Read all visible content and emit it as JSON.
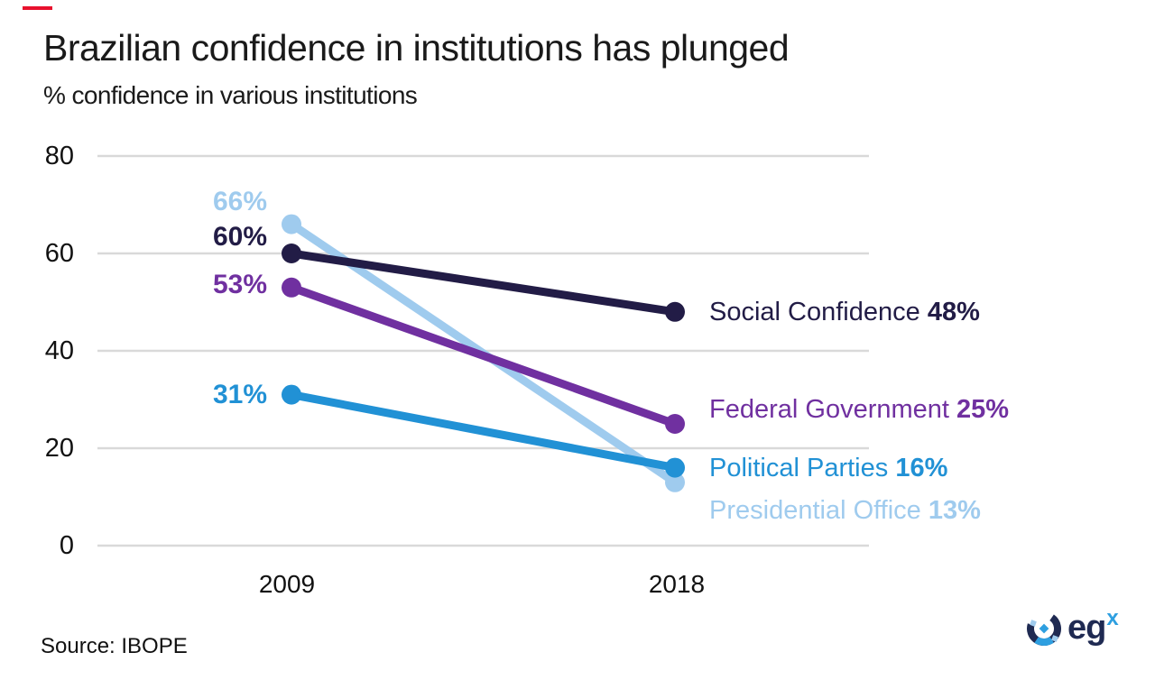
{
  "header": {
    "accent_color": "#E8112D",
    "title": "Brazilian confidence in institutions has plunged",
    "subtitle": "% confidence in various institutions"
  },
  "chart_data": {
    "type": "line",
    "x": [
      2009,
      2018
    ],
    "x_tick_labels": [
      "2009",
      "2018"
    ],
    "yticks": [
      0,
      20,
      40,
      60,
      80
    ],
    "ylim": [
      0,
      80
    ],
    "grid": "horizontal",
    "gridline_color": "#D9D9D9",
    "legend_position": "end-of-line labels",
    "series": [
      {
        "name": "Presidential Office",
        "color": "#9FCBEE",
        "values": [
          66,
          13
        ],
        "start_value_label": "66%",
        "end_value_label": "13%"
      },
      {
        "name": "Political Parties",
        "color": "#2191D5",
        "values": [
          31,
          16
        ],
        "start_value_label": "31%",
        "end_value_label": "16%"
      },
      {
        "name": "Federal Government",
        "color": "#7030A0",
        "values": [
          53,
          25
        ],
        "start_value_label": "53%",
        "end_value_label": "25%"
      },
      {
        "name": "Social Confidence",
        "color": "#221C46",
        "values": [
          60,
          48
        ],
        "start_value_label": "60%",
        "end_value_label": "48%"
      }
    ]
  },
  "source": {
    "label": "Source: IBOPE"
  },
  "logo": {
    "text": "eg",
    "sup": "x",
    "navy": "#1F2A52",
    "blue": "#2E9FE0",
    "light_blue": "#9FCBEE"
  }
}
